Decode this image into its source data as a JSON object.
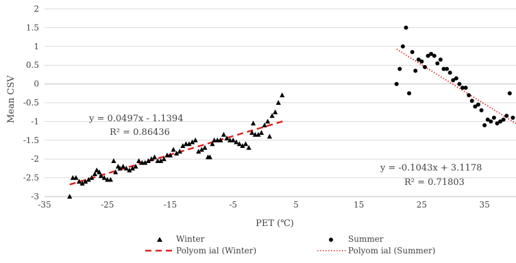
{
  "chart_data": {
    "type": "scatter",
    "title": "",
    "xlabel": "PET (℃)",
    "ylabel": "Mean CSV",
    "xlim": [
      -35,
      40
    ],
    "ylim": [
      -3,
      2
    ],
    "x_ticks": [
      "-35",
      "-25",
      "-15",
      "-5",
      "5",
      "15",
      "25",
      "35"
    ],
    "y_ticks": [
      "2",
      "1.5",
      "1",
      "0.5",
      "0",
      "-0.5",
      "-1",
      "-1.5",
      "-2",
      "-2.5",
      "-3"
    ],
    "grid": "horizontal",
    "legend_position": "bottom",
    "series": [
      {
        "name": "Winter",
        "marker": "triangle",
        "color": "#000000",
        "points": [
          [
            -31,
            -3.0
          ],
          [
            -30.5,
            -2.5
          ],
          [
            -30,
            -2.5
          ],
          [
            -29.5,
            -2.6
          ],
          [
            -29,
            -2.65
          ],
          [
            -28.5,
            -2.6
          ],
          [
            -28,
            -2.55
          ],
          [
            -27.5,
            -2.5
          ],
          [
            -27,
            -2.4
          ],
          [
            -26.7,
            -2.3
          ],
          [
            -26.3,
            -2.35
          ],
          [
            -26,
            -2.45
          ],
          [
            -25.5,
            -2.5
          ],
          [
            -25,
            -2.55
          ],
          [
            -24.5,
            -2.55
          ],
          [
            -24,
            -2.05
          ],
          [
            -23.7,
            -2.35
          ],
          [
            -23.3,
            -2.2
          ],
          [
            -23,
            -2.25
          ],
          [
            -22.5,
            -2.2
          ],
          [
            -22,
            -2.25
          ],
          [
            -21.5,
            -2.3
          ],
          [
            -21,
            -2.25
          ],
          [
            -20.5,
            -2.2
          ],
          [
            -20,
            -2.05
          ],
          [
            -19.5,
            -2.1
          ],
          [
            -19,
            -2.1
          ],
          [
            -18.5,
            -2.05
          ],
          [
            -18,
            -2.0
          ],
          [
            -17.5,
            -1.95
          ],
          [
            -17,
            -2.05
          ],
          [
            -16.5,
            -2.05
          ],
          [
            -16,
            -2.0
          ],
          [
            -15.5,
            -1.9
          ],
          [
            -15,
            -1.9
          ],
          [
            -14.5,
            -1.75
          ],
          [
            -14,
            -1.85
          ],
          [
            -13.5,
            -1.8
          ],
          [
            -13,
            -1.65
          ],
          [
            -12.5,
            -1.6
          ],
          [
            -12,
            -1.6
          ],
          [
            -11.5,
            -1.55
          ],
          [
            -11,
            -1.5
          ],
          [
            -10.5,
            -1.8
          ],
          [
            -10,
            -1.75
          ],
          [
            -9.5,
            -1.7
          ],
          [
            -9,
            -1.95
          ],
          [
            -8.7,
            -1.95
          ],
          [
            -8.3,
            -1.6
          ],
          [
            -8,
            -1.5
          ],
          [
            -7.5,
            -1.5
          ],
          [
            -7,
            -1.5
          ],
          [
            -6.5,
            -1.35
          ],
          [
            -6,
            -1.45
          ],
          [
            -5.5,
            -1.5
          ],
          [
            -5,
            -1.5
          ],
          [
            -4.5,
            -1.55
          ],
          [
            -4,
            -1.6
          ],
          [
            -3.5,
            -1.65
          ],
          [
            -3,
            -1.6
          ],
          [
            -2.5,
            -1.7
          ],
          [
            -2,
            -1.3
          ],
          [
            -1.8,
            -1.05
          ],
          [
            -1.5,
            -1.35
          ],
          [
            -1,
            -1.35
          ],
          [
            -0.5,
            -1.3
          ],
          [
            0,
            -1.1
          ],
          [
            0.5,
            -1.0
          ],
          [
            0.8,
            -1.4
          ],
          [
            1.2,
            -0.85
          ],
          [
            1.7,
            -0.75
          ],
          [
            2.2,
            -0.5
          ],
          [
            2.8,
            -0.3
          ]
        ]
      },
      {
        "name": "Summer",
        "marker": "circle",
        "color": "#000000",
        "points": [
          [
            21,
            0.0
          ],
          [
            21.5,
            0.4
          ],
          [
            22,
            1.0
          ],
          [
            22.5,
            1.5
          ],
          [
            23,
            -0.25
          ],
          [
            23.5,
            0.85
          ],
          [
            24,
            0.35
          ],
          [
            24.5,
            0.65
          ],
          [
            25,
            0.6
          ],
          [
            25.5,
            0.45
          ],
          [
            26,
            0.75
          ],
          [
            26.5,
            0.8
          ],
          [
            27,
            0.75
          ],
          [
            27.5,
            0.55
          ],
          [
            28,
            0.65
          ],
          [
            28.5,
            0.4
          ],
          [
            29,
            0.4
          ],
          [
            29.5,
            0.3
          ],
          [
            30,
            0.1
          ],
          [
            30.5,
            0.15
          ],
          [
            31,
            0.0
          ],
          [
            31.5,
            -0.1
          ],
          [
            32,
            -0.1
          ],
          [
            32.5,
            -0.3
          ],
          [
            33,
            -0.45
          ],
          [
            33.5,
            -0.6
          ],
          [
            34,
            -0.55
          ],
          [
            34.5,
            -0.7
          ],
          [
            35,
            -1.1
          ],
          [
            35.5,
            -0.95
          ],
          [
            36,
            -1.0
          ],
          [
            36.5,
            -0.9
          ],
          [
            37,
            -1.05
          ],
          [
            37.5,
            -1.0
          ],
          [
            38,
            -0.95
          ],
          [
            38.5,
            -0.85
          ],
          [
            39,
            -0.25
          ],
          [
            39.5,
            -0.9
          ]
        ]
      },
      {
        "name": "Polyom ial (Winter)",
        "type": "trendline",
        "style": "dashed",
        "color": "#e02020",
        "x_range": [
          -31,
          3
        ],
        "equation": "y = 0.0497x - 1.1394",
        "r2": "R² = 0.86436",
        "slope": 0.0497,
        "intercept": -1.1394
      },
      {
        "name": "Polyom ial (Summer)",
        "type": "trendline",
        "style": "dotted",
        "color": "#e02020",
        "x_range": [
          21,
          40
        ],
        "equation": "y = -0.1043x + 3.1178",
        "r2": "R² = 0.71803",
        "slope": -0.1043,
        "intercept": 3.1178
      }
    ]
  }
}
